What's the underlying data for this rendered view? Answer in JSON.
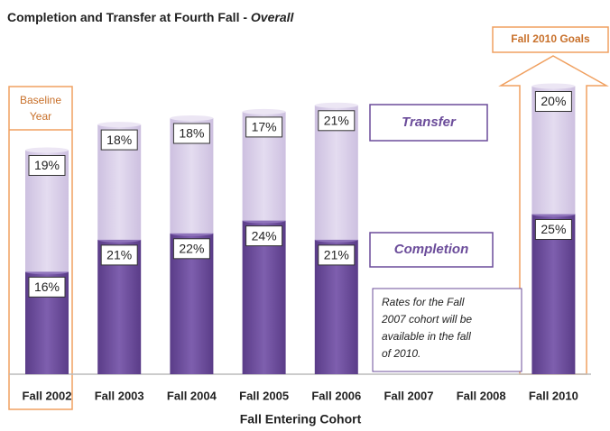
{
  "chart_data": {
    "type": "stacked-bar",
    "title": "Completion and Transfer at Fourth Fall -",
    "title_suffix": "Overall",
    "xlabel": "Fall Entering Cohort",
    "categories": [
      "Fall 2002",
      "Fall 2003",
      "Fall 2004",
      "Fall 2005",
      "Fall 2006",
      "Fall 2007",
      "Fall 2008",
      "Fall 2010"
    ],
    "series": [
      {
        "name": "Completion",
        "color": "#6b4c9a",
        "values": [
          16,
          21,
          22,
          24,
          21,
          null,
          null,
          25
        ],
        "value_labels": [
          "16%",
          "21%",
          "22%",
          "24%",
          "21%",
          null,
          null,
          "25%"
        ]
      },
      {
        "name": "Transfer",
        "color": "#d9cfe8",
        "values": [
          19,
          18,
          18,
          17,
          21,
          null,
          null,
          20
        ],
        "value_labels": [
          "19%",
          "18%",
          "18%",
          "17%",
          "21%",
          null,
          null,
          "20%"
        ]
      }
    ],
    "annotations": {
      "baseline": [
        "Baseline",
        "Year"
      ],
      "goals": "Fall 2010 Goals",
      "note": [
        "Rates for  the Fall",
        "2007 cohort will be",
        "available in the fall",
        "of 2010."
      ]
    }
  }
}
